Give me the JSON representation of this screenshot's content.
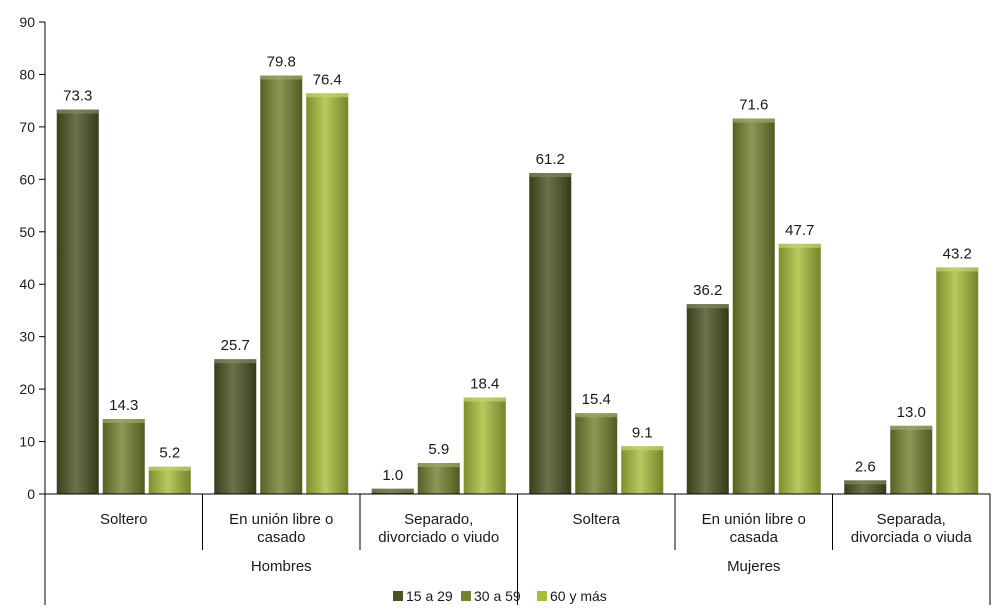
{
  "chart_data": {
    "type": "bar",
    "ylim": [
      0,
      90
    ],
    "yticks": [
      0,
      10,
      20,
      30,
      40,
      50,
      60,
      70,
      80,
      90
    ],
    "grid": false,
    "legend_position": "bottom-center",
    "groups": [
      {
        "label": "Hombres",
        "categories": [
          "Soltero",
          "En unión libre o casado",
          "Separado, divorciado o viudo"
        ]
      },
      {
        "label": "Mujeres",
        "categories": [
          "Soltera",
          "En unión libre o casada",
          "Separada, divorciada o viuda"
        ]
      }
    ],
    "category_label_lines": [
      [
        "Soltero"
      ],
      [
        "En unión libre o",
        "casado"
      ],
      [
        "Separado,",
        "divorciado o viudo"
      ],
      [
        "Soltera"
      ],
      [
        "En unión libre o",
        "casada"
      ],
      [
        "Separada,",
        "divorciada o viuda"
      ]
    ],
    "series": [
      {
        "name": "15 a 29",
        "color": "#4a5423",
        "values": [
          73.3,
          25.7,
          1.0,
          61.2,
          36.2,
          2.6
        ]
      },
      {
        "name": "30 a 59",
        "color": "#738230",
        "values": [
          14.3,
          79.8,
          5.9,
          15.4,
          71.6,
          13.0
        ]
      },
      {
        "name": "60 y más",
        "color": "#a9bd3c",
        "values": [
          5.2,
          76.4,
          18.4,
          9.1,
          47.7,
          43.2
        ]
      }
    ]
  }
}
